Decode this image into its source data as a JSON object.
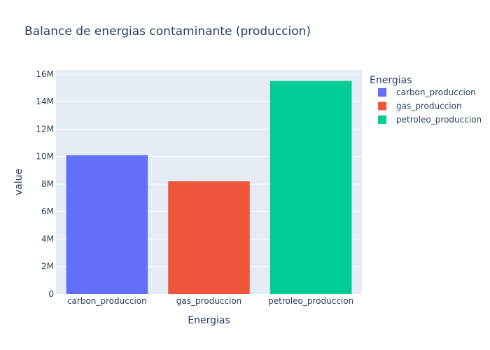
{
  "chart_data": {
    "type": "bar",
    "title": "Balance de energias contaminante (produccion)",
    "xlabel": "Energias",
    "ylabel": "value",
    "categories": [
      "carbon_produccion",
      "gas_produccion",
      "petroleo_produccion"
    ],
    "values": [
      10100000,
      8200000,
      15500000
    ],
    "colors": [
      "#636efa",
      "#ef553b",
      "#00cc96"
    ],
    "ylim": [
      0,
      16300000
    ],
    "yticks": [
      0,
      2000000,
      4000000,
      6000000,
      8000000,
      10000000,
      12000000,
      14000000,
      16000000
    ],
    "ytick_labels": [
      "0",
      "2M",
      "4M",
      "6M",
      "8M",
      "10M",
      "12M",
      "14M",
      "16M"
    ],
    "grid": true,
    "legend": {
      "title": "Energias",
      "position": "right",
      "items": [
        "carbon_produccion",
        "gas_produccion",
        "petroleo_produccion"
      ]
    },
    "plot_background": "#e5ecf6"
  }
}
